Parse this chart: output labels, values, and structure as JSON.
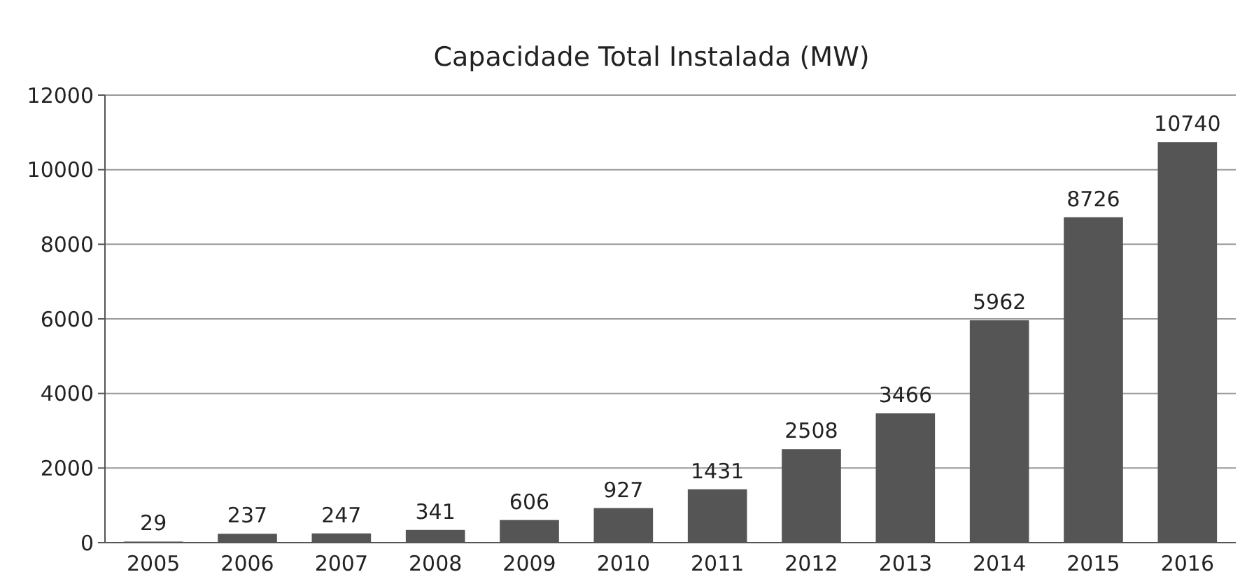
{
  "chart_data": {
    "type": "bar",
    "title": "Capacidade Total Instalada (MW)",
    "categories": [
      "2005",
      "2006",
      "2007",
      "2008",
      "2009",
      "2010",
      "2011",
      "2012",
      "2013",
      "2014",
      "2015",
      "2016"
    ],
    "values": [
      29,
      237,
      247,
      341,
      606,
      927,
      1431,
      2508,
      3466,
      5962,
      8726,
      10740
    ],
    "color": "#555555",
    "ylim": [
      0,
      12000
    ],
    "yticks": [
      0,
      2000,
      4000,
      6000,
      8000,
      10000,
      12000
    ],
    "grid": "y",
    "data_labels": true
  }
}
